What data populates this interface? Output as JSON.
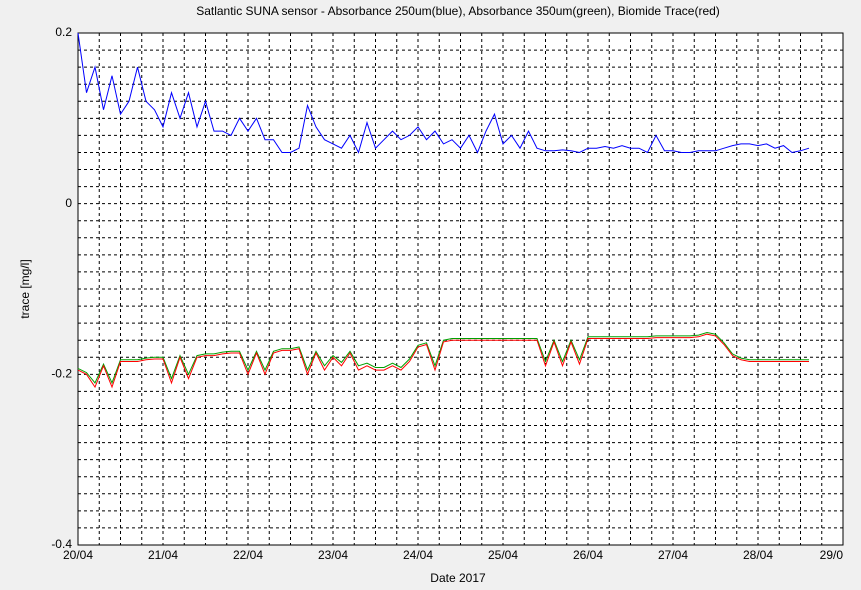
{
  "chart_data": {
    "type": "line",
    "title": "Satlantic SUNA sensor - Absorbance 250um(blue), Absorbance 350um(green), Biomide Trace(red)",
    "xlabel": "Date 2017",
    "ylabel": "trace [mg/l]",
    "xlim": [
      0,
      9
    ],
    "xticks": [
      {
        "value": 0,
        "label": "20/04"
      },
      {
        "value": 1,
        "label": "21/04"
      },
      {
        "value": 2,
        "label": "22/04"
      },
      {
        "value": 3,
        "label": "23/04"
      },
      {
        "value": 4,
        "label": "24/04"
      },
      {
        "value": 5,
        "label": "25/04"
      },
      {
        "value": 6,
        "label": "26/04"
      },
      {
        "value": 7,
        "label": "27/04"
      },
      {
        "value": 8,
        "label": "28/04"
      },
      {
        "value": 9,
        "label": "29/0"
      }
    ],
    "ylim": [
      -0.4,
      0.2
    ],
    "yticks": [
      0.2,
      0,
      -0.2,
      -0.4
    ],
    "grid": true,
    "minor_grid": true,
    "x": [
      0,
      0.1,
      0.2,
      0.3,
      0.4,
      0.5,
      0.6,
      0.7,
      0.8,
      0.9,
      1,
      1.1,
      1.2,
      1.3,
      1.4,
      1.5,
      1.6,
      1.7,
      1.8,
      1.9,
      2,
      2.1,
      2.2,
      2.3,
      2.4,
      2.5,
      2.6,
      2.7,
      2.8,
      2.9,
      3,
      3.1,
      3.2,
      3.3,
      3.4,
      3.5,
      3.6,
      3.7,
      3.8,
      3.9,
      4,
      4.1,
      4.2,
      4.3,
      4.4,
      4.5,
      4.6,
      4.7,
      4.8,
      4.9,
      5,
      5.1,
      5.2,
      5.3,
      5.4,
      5.5,
      5.6,
      5.7,
      5.8,
      5.9,
      6,
      6.1,
      6.2,
      6.3,
      6.4,
      6.5,
      6.6,
      6.7,
      6.8,
      6.9,
      7,
      7.1,
      7.2,
      7.3,
      7.4,
      7.5,
      7.6,
      7.7,
      7.8,
      7.9,
      8,
      8.1,
      8.2,
      8.3,
      8.4,
      8.5,
      8.6
    ],
    "series": [
      {
        "color": "#0000ff",
        "values": [
          0.2,
          0.13,
          0.16,
          0.11,
          0.15,
          0.105,
          0.12,
          0.16,
          0.12,
          0.11,
          0.09,
          0.13,
          0.1,
          0.13,
          0.09,
          0.12,
          0.085,
          0.085,
          0.08,
          0.1,
          0.085,
          0.1,
          0.075,
          0.075,
          0.06,
          0.06,
          0.065,
          0.115,
          0.09,
          0.075,
          0.07,
          0.065,
          0.08,
          0.06,
          0.095,
          0.065,
          0.075,
          0.085,
          0.075,
          0.08,
          0.09,
          0.075,
          0.085,
          0.07,
          0.075,
          0.065,
          0.08,
          0.06,
          0.085,
          0.105,
          0.07,
          0.08,
          0.065,
          0.085,
          0.065,
          0.062,
          0.062,
          0.063,
          0.062,
          0.06,
          0.065,
          0.065,
          0.067,
          0.065,
          0.068,
          0.065,
          0.065,
          0.06,
          0.08,
          0.062,
          0.062,
          0.06,
          0.06,
          0.062,
          0.062,
          0.062,
          0.065,
          0.068,
          0.07,
          0.07,
          0.068,
          0.07,
          0.065,
          0.068,
          0.06,
          0.062,
          0.065
        ]
      },
      {
        "color": "#00a000",
        "values": [
          -0.193,
          -0.198,
          -0.21,
          -0.188,
          -0.21,
          -0.183,
          -0.183,
          -0.183,
          -0.181,
          -0.18,
          -0.18,
          -0.205,
          -0.178,
          -0.2,
          -0.178,
          -0.176,
          -0.176,
          -0.174,
          -0.173,
          -0.173,
          -0.195,
          -0.173,
          -0.195,
          -0.173,
          -0.17,
          -0.17,
          -0.168,
          -0.195,
          -0.173,
          -0.19,
          -0.178,
          -0.186,
          -0.173,
          -0.19,
          -0.187,
          -0.192,
          -0.192,
          -0.187,
          -0.192,
          -0.182,
          -0.166,
          -0.163,
          -0.19,
          -0.16,
          -0.158,
          -0.158,
          -0.158,
          -0.158,
          -0.158,
          -0.158,
          -0.158,
          -0.158,
          -0.158,
          -0.158,
          -0.158,
          -0.185,
          -0.16,
          -0.185,
          -0.16,
          -0.183,
          -0.156,
          -0.156,
          -0.156,
          -0.156,
          -0.156,
          -0.156,
          -0.156,
          -0.156,
          -0.155,
          -0.155,
          -0.155,
          -0.155,
          -0.155,
          -0.154,
          -0.151,
          -0.153,
          -0.163,
          -0.176,
          -0.181,
          -0.183,
          -0.183,
          -0.183,
          -0.183,
          -0.183,
          -0.183,
          -0.183,
          -0.183
        ]
      },
      {
        "color": "#ff0000",
        "values": [
          -0.195,
          -0.2,
          -0.215,
          -0.19,
          -0.215,
          -0.185,
          -0.185,
          -0.185,
          -0.183,
          -0.182,
          -0.182,
          -0.21,
          -0.18,
          -0.205,
          -0.18,
          -0.178,
          -0.178,
          -0.176,
          -0.175,
          -0.175,
          -0.2,
          -0.175,
          -0.2,
          -0.175,
          -0.172,
          -0.172,
          -0.17,
          -0.2,
          -0.175,
          -0.195,
          -0.18,
          -0.19,
          -0.175,
          -0.195,
          -0.19,
          -0.195,
          -0.195,
          -0.19,
          -0.195,
          -0.185,
          -0.168,
          -0.165,
          -0.195,
          -0.162,
          -0.16,
          -0.16,
          -0.16,
          -0.16,
          -0.16,
          -0.16,
          -0.16,
          -0.16,
          -0.16,
          -0.16,
          -0.16,
          -0.19,
          -0.162,
          -0.19,
          -0.162,
          -0.188,
          -0.158,
          -0.158,
          -0.158,
          -0.158,
          -0.158,
          -0.158,
          -0.158,
          -0.158,
          -0.157,
          -0.157,
          -0.157,
          -0.157,
          -0.157,
          -0.156,
          -0.153,
          -0.155,
          -0.165,
          -0.178,
          -0.183,
          -0.185,
          -0.185,
          -0.185,
          -0.185,
          -0.185,
          -0.185,
          -0.185,
          -0.185
        ]
      }
    ]
  }
}
